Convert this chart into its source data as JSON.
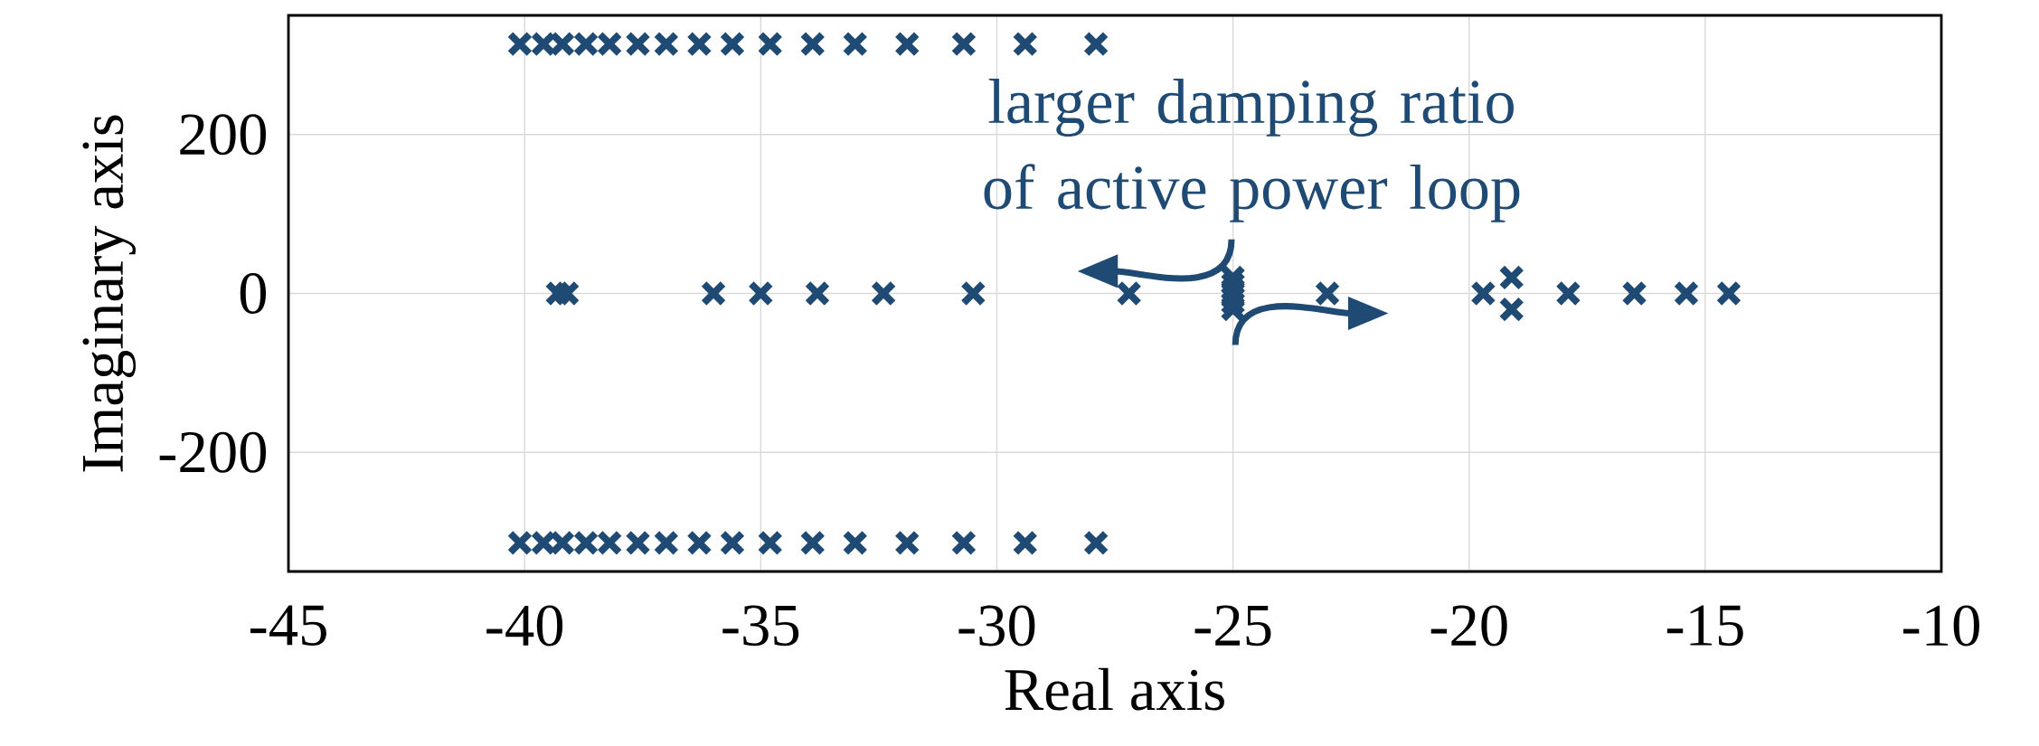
{
  "chart_data": {
    "type": "scatter",
    "xlabel": "Real axis",
    "ylabel": "Imaginary axis",
    "annotations": [
      "larger damping ratio of active power loop"
    ],
    "xlim": [
      -45,
      -10
    ],
    "xticks": [
      -45,
      -40,
      -35,
      -30,
      -25,
      -20,
      -15,
      -10
    ],
    "ylim": [
      -350,
      350
    ],
    "yticks": [
      -200,
      0,
      200
    ],
    "grid": true,
    "marker": "cross",
    "series": [
      {
        "color": "#1f4a73",
        "x": [
          -40.1,
          -39.6,
          -39.2,
          -38.7,
          -38.2,
          -37.6,
          -37.0,
          -36.3,
          -35.6,
          -34.8,
          -33.9,
          -33.0,
          -31.9,
          -30.7,
          -29.4,
          -27.9,
          -40.1,
          -39.6,
          -39.2,
          -38.7,
          -38.2,
          -37.6,
          -37.0,
          -36.3,
          -35.6,
          -34.8,
          -33.9,
          -33.0,
          -31.9,
          -30.7,
          -29.4,
          -27.9,
          -39.3,
          -39.1,
          -36.0,
          -35.0,
          -33.8,
          -32.4,
          -30.5,
          -27.2,
          -25.0,
          -25.0,
          -25.0,
          -25.0,
          -25.0,
          -25.0,
          -25.0,
          -23.0,
          -19.7,
          -19.1,
          -19.1,
          -17.9,
          -16.5,
          -15.4,
          -14.5
        ],
        "values": [
          314,
          314,
          314,
          314,
          314,
          314,
          314,
          314,
          314,
          314,
          314,
          314,
          314,
          314,
          314,
          314,
          -314,
          -314,
          -314,
          -314,
          -314,
          -314,
          -314,
          -314,
          -314,
          -314,
          -314,
          -314,
          -314,
          -314,
          -314,
          -314,
          0,
          0,
          0,
          0,
          0,
          0,
          0,
          0,
          20,
          12,
          5,
          0,
          -5,
          -12,
          -20,
          0,
          0,
          20,
          -20,
          0,
          0,
          0,
          0
        ]
      }
    ]
  }
}
